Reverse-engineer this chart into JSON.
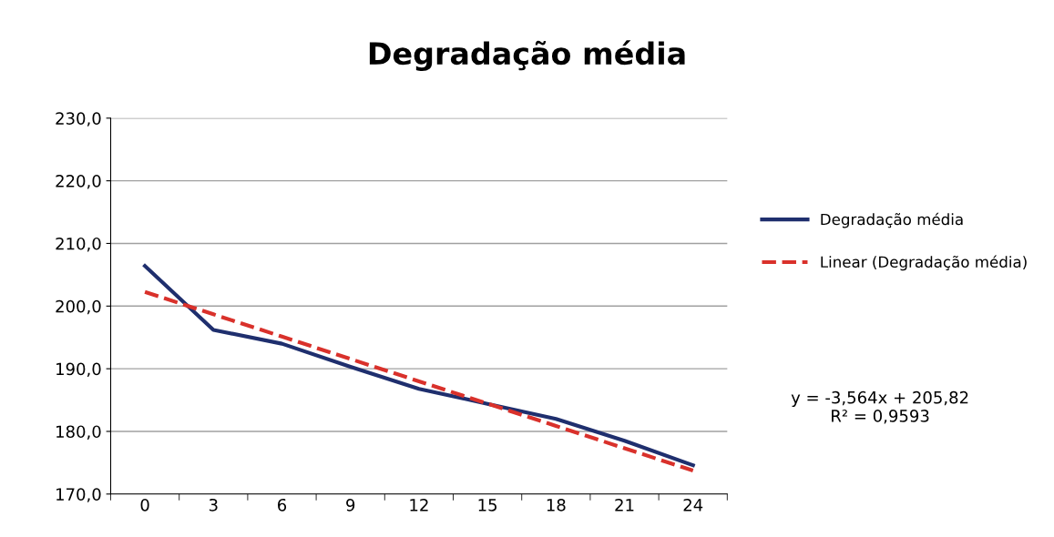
{
  "chart_data": {
    "type": "line",
    "title": "Degradação média",
    "categories": [
      "0",
      "3",
      "6",
      "9",
      "12",
      "15",
      "18",
      "21",
      "24"
    ],
    "series": [
      {
        "name": "Degradação média",
        "color": "#1f2f6e",
        "values": [
          206.4,
          196.2,
          194.0,
          190.3,
          186.8,
          184.4,
          182.0,
          178.5,
          174.6
        ]
      },
      {
        "name": "Linear (Degradação média)",
        "color": "#d9312b",
        "line_style": "dashed",
        "values": [
          202.26,
          198.69,
          195.13,
          191.56,
          188.0,
          184.43,
          180.87,
          177.31,
          173.74
        ]
      }
    ],
    "ylim": [
      170,
      230
    ],
    "yticks": [
      {
        "value": 170,
        "label": "170,0"
      },
      {
        "value": 180,
        "label": "180,0"
      },
      {
        "value": 190,
        "label": "190,0"
      },
      {
        "value": 200,
        "label": "200,0"
      },
      {
        "value": 210,
        "label": "210,0"
      },
      {
        "value": 220,
        "label": "220,0"
      },
      {
        "value": 230,
        "label": "230,0"
      }
    ],
    "grid": "y",
    "legend": "right",
    "annotations": [
      "y = -3,564x + 205,82\nR² = 0,9593"
    ]
  }
}
